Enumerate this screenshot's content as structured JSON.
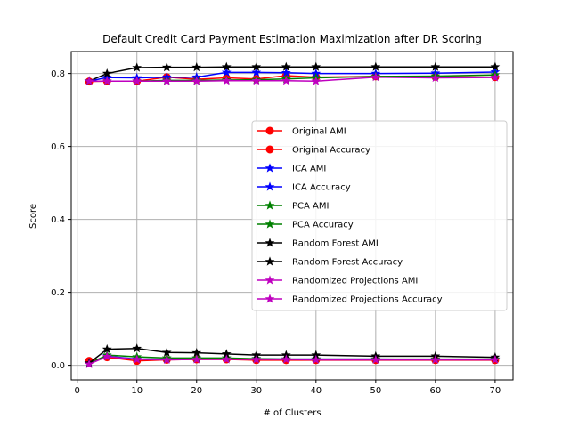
{
  "chart_data": {
    "type": "line",
    "title": "Default Credit Card Payment Estimation Maximization after DR Scoring",
    "xlabel": "# of Clusters",
    "ylabel": "Score",
    "xlim": [
      -1,
      73
    ],
    "ylim": [
      -0.04,
      0.86
    ],
    "xticks": [
      0,
      10,
      20,
      30,
      40,
      50,
      60,
      70
    ],
    "yticks": [
      0.0,
      0.2,
      0.4,
      0.6,
      0.8
    ],
    "ytick_labels": [
      "0.0",
      "0.2",
      "0.4",
      "0.6",
      "0.8"
    ],
    "grid": true,
    "legend_position": "center-right",
    "x": [
      2,
      5,
      10,
      15,
      20,
      25,
      30,
      35,
      40,
      50,
      60,
      70
    ],
    "series": [
      {
        "name": "Original AMI",
        "color": "#ff0000",
        "marker": "circle",
        "values": [
          0.012,
          0.022,
          0.012,
          0.015,
          0.016,
          0.016,
          0.014,
          0.014,
          0.014,
          0.014,
          0.014,
          0.014
        ]
      },
      {
        "name": "Original Accuracy",
        "color": "#ff0000",
        "marker": "circle",
        "values": [
          0.778,
          0.779,
          0.779,
          0.79,
          0.784,
          0.788,
          0.785,
          0.794,
          0.79,
          0.792,
          0.791,
          0.79
        ]
      },
      {
        "name": "ICA AMI",
        "color": "#0000ff",
        "marker": "star",
        "values": [
          0.006,
          0.025,
          0.017,
          0.017,
          0.018,
          0.017,
          0.018,
          0.017,
          0.017,
          0.017,
          0.016,
          0.016
        ]
      },
      {
        "name": "ICA Accuracy",
        "color": "#0000ff",
        "marker": "star",
        "values": [
          0.779,
          0.789,
          0.788,
          0.79,
          0.79,
          0.803,
          0.803,
          0.802,
          0.8,
          0.8,
          0.801,
          0.804
        ]
      },
      {
        "name": "PCA AMI",
        "color": "#008000",
        "marker": "star",
        "values": [
          0.005,
          0.028,
          0.023,
          0.02,
          0.02,
          0.02,
          0.018,
          0.017,
          0.017,
          0.017,
          0.017,
          0.017
        ]
      },
      {
        "name": "PCA Accuracy",
        "color": "#008000",
        "marker": "star",
        "values": [
          0.779,
          0.779,
          0.779,
          0.781,
          0.781,
          0.782,
          0.783,
          0.785,
          0.788,
          0.792,
          0.793,
          0.796
        ]
      },
      {
        "name": "Random Forest AMI",
        "color": "#000000",
        "marker": "star",
        "values": [
          0.006,
          0.044,
          0.046,
          0.035,
          0.034,
          0.031,
          0.028,
          0.028,
          0.028,
          0.025,
          0.025,
          0.022
        ]
      },
      {
        "name": "Random Forest Accuracy",
        "color": "#000000",
        "marker": "star",
        "values": [
          0.779,
          0.8,
          0.816,
          0.817,
          0.817,
          0.818,
          0.818,
          0.818,
          0.818,
          0.818,
          0.818,
          0.818
        ]
      },
      {
        "name": "Randomized Projections AMI",
        "color": "#bf00bf",
        "marker": "star",
        "values": [
          0.003,
          0.024,
          0.016,
          0.015,
          0.016,
          0.016,
          0.016,
          0.016,
          0.015,
          0.015,
          0.015,
          0.015
        ]
      },
      {
        "name": "Randomized Projections Accuracy",
        "color": "#bf00bf",
        "marker": "star",
        "values": [
          0.779,
          0.779,
          0.779,
          0.779,
          0.779,
          0.78,
          0.78,
          0.78,
          0.779,
          0.79,
          0.788,
          0.789
        ]
      }
    ]
  }
}
